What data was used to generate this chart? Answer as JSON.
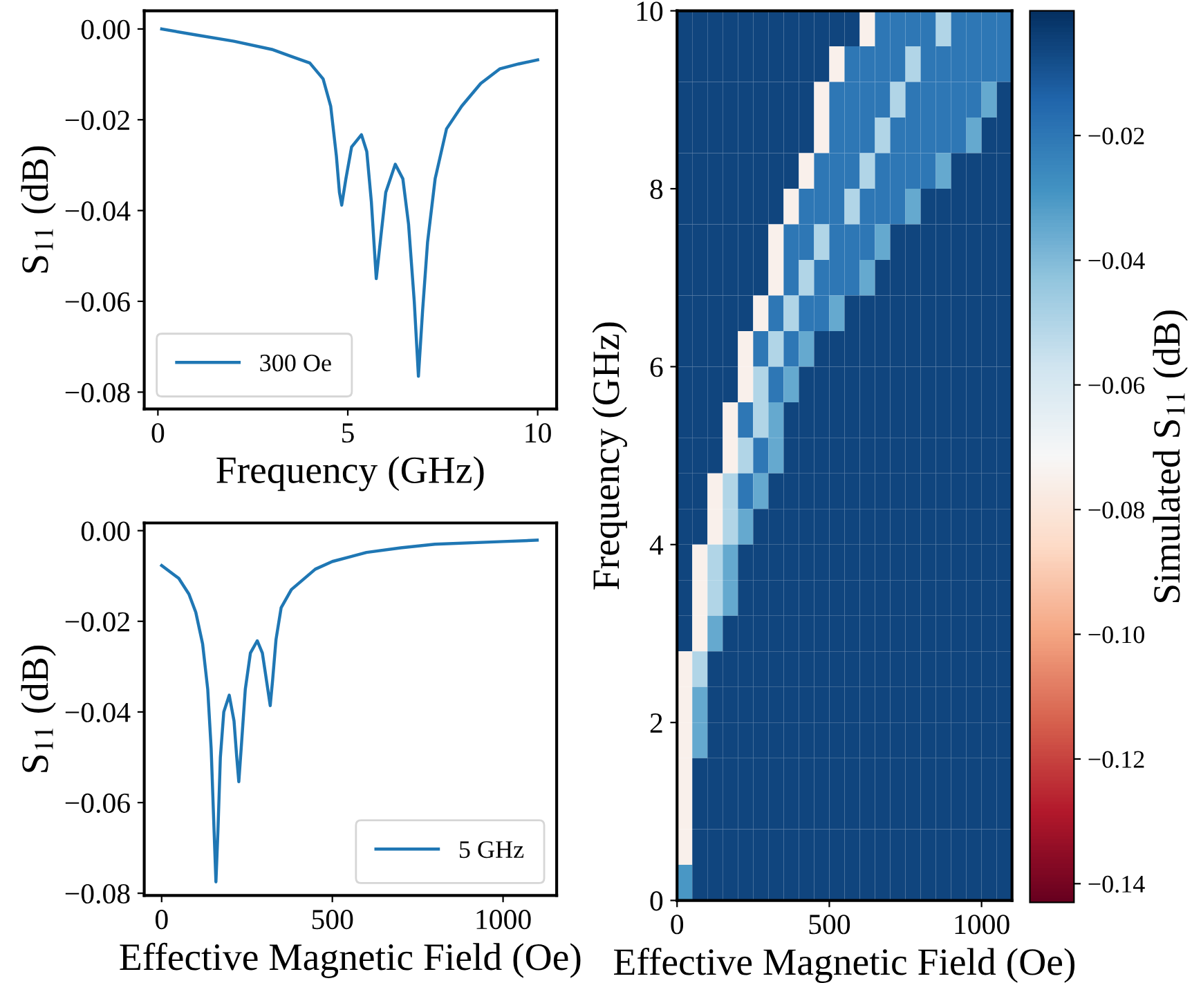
{
  "chart_data": [
    {
      "type": "line",
      "xlabel": "Frequency (GHz)",
      "ylabel": "S$_{11}$ (dB)",
      "xlim": [
        -0.36,
        10.5
      ],
      "ylim": [
        -0.0837,
        0.004
      ],
      "xticks": [
        0,
        5,
        10
      ],
      "yticks": [
        {
          "value": 0,
          "label": "0.00"
        },
        {
          "value": -0.02,
          "label": "−0.02"
        },
        {
          "value": -0.04,
          "label": "−0.04"
        },
        {
          "value": -0.06,
          "label": "−0.06"
        },
        {
          "value": -0.08,
          "label": "−0.08"
        }
      ],
      "grid": false,
      "legend": "bottom left",
      "series": [
        {
          "name": "300 Oe",
          "color": "#1f77b4",
          "x": [
            0.1,
            1,
            2,
            3,
            3.5,
            4.0,
            4.35,
            4.55,
            4.7,
            4.78,
            4.84,
            4.95,
            5.1,
            5.36,
            5.5,
            5.62,
            5.75,
            5.88,
            6.0,
            6.25,
            6.45,
            6.6,
            6.75,
            6.86,
            6.97,
            7.1,
            7.3,
            7.6,
            8,
            8.5,
            9,
            9.5,
            10
          ],
          "values": [
            0.0,
            -0.0013,
            -0.0027,
            -0.0045,
            -0.006,
            -0.0075,
            -0.011,
            -0.017,
            -0.028,
            -0.036,
            -0.0388,
            -0.033,
            -0.026,
            -0.0233,
            -0.027,
            -0.038,
            -0.055,
            -0.045,
            -0.036,
            -0.0298,
            -0.033,
            -0.043,
            -0.06,
            -0.0765,
            -0.062,
            -0.047,
            -0.033,
            -0.022,
            -0.017,
            -0.012,
            -0.0088,
            -0.0077,
            -0.0068
          ]
        }
      ]
    },
    {
      "type": "line",
      "xlabel": "Effective Magnetic Field (Oe)",
      "ylabel": "S$_{11}$ (dB)",
      "xlim": [
        -51,
        1157
      ],
      "ylim": [
        -0.0805,
        0.0017
      ],
      "xticks": [
        0,
        500,
        1000
      ],
      "yticks": [
        {
          "value": 0,
          "label": "0.00"
        },
        {
          "value": -0.02,
          "label": "−0.02"
        },
        {
          "value": -0.04,
          "label": "−0.04"
        },
        {
          "value": -0.06,
          "label": "−0.06"
        },
        {
          "value": -0.08,
          "label": "−0.08"
        }
      ],
      "grid": false,
      "legend": "bottom right",
      "series": [
        {
          "name": "5 GHz",
          "color": "#1f77b4",
          "x": [
            0,
            50,
            80,
            100,
            120,
            135,
            145,
            153,
            159,
            165,
            172,
            182,
            198,
            212,
            220,
            226,
            233,
            245,
            260,
            280,
            295,
            305,
            318,
            325,
            335,
            350,
            380,
            450,
            500,
            600,
            700,
            800,
            1000,
            1100
          ],
          "values": [
            -0.0077,
            -0.0105,
            -0.014,
            -0.018,
            -0.025,
            -0.035,
            -0.048,
            -0.065,
            -0.0775,
            -0.066,
            -0.05,
            -0.04,
            -0.0363,
            -0.042,
            -0.05,
            -0.0554,
            -0.048,
            -0.035,
            -0.027,
            -0.0243,
            -0.027,
            -0.032,
            -0.0386,
            -0.033,
            -0.024,
            -0.017,
            -0.013,
            -0.0085,
            -0.0068,
            -0.0048,
            -0.0038,
            -0.003,
            -0.0024,
            -0.0021
          ]
        }
      ]
    },
    {
      "type": "heatmap",
      "xlabel": "Effective Magnetic Field (Oe)",
      "ylabel": "Frequency (GHz)",
      "clabel": "Simulated S$_{11}$ (dB)",
      "xlim": [
        0,
        1100
      ],
      "ylim": [
        0,
        10
      ],
      "xticks": [
        0,
        500,
        1000
      ],
      "yticks": [
        0,
        2,
        4,
        6,
        8,
        10
      ],
      "clim": [
        -0.143,
        0
      ],
      "cticks": [
        {
          "value": -0.02,
          "label": "−0.02"
        },
        {
          "value": -0.04,
          "label": "−0.04"
        },
        {
          "value": -0.06,
          "label": "−0.06"
        },
        {
          "value": -0.08,
          "label": "−0.08"
        },
        {
          "value": -0.1,
          "label": "−0.10"
        },
        {
          "value": -0.12,
          "label": "−0.12"
        },
        {
          "value": -0.14,
          "label": "−0.14"
        }
      ],
      "cells": [
        [
          -0.006,
          -0.006,
          -0.006,
          -0.006,
          -0.006,
          -0.006,
          -0.006,
          -0.006,
          -0.006,
          -0.006,
          -0.006,
          -0.006,
          -0.075,
          -0.02,
          -0.02,
          -0.02,
          -0.02,
          -0.05,
          -0.02,
          -0.02,
          -0.02,
          -0.02
        ],
        [
          -0.006,
          -0.006,
          -0.006,
          -0.006,
          -0.006,
          -0.006,
          -0.006,
          -0.006,
          -0.006,
          -0.006,
          -0.075,
          -0.02,
          -0.02,
          -0.02,
          -0.02,
          -0.05,
          -0.02,
          -0.02,
          -0.02,
          -0.02,
          -0.02,
          -0.02
        ],
        [
          -0.006,
          -0.006,
          -0.006,
          -0.006,
          -0.006,
          -0.006,
          -0.006,
          -0.006,
          -0.006,
          -0.075,
          -0.02,
          -0.02,
          -0.02,
          -0.02,
          -0.05,
          -0.02,
          -0.02,
          -0.02,
          -0.02,
          -0.02,
          -0.035,
          -0.006
        ],
        [
          -0.006,
          -0.006,
          -0.006,
          -0.006,
          -0.006,
          -0.006,
          -0.006,
          -0.006,
          -0.006,
          -0.075,
          -0.02,
          -0.02,
          -0.02,
          -0.05,
          -0.02,
          -0.02,
          -0.02,
          -0.02,
          -0.02,
          -0.035,
          -0.006,
          -0.006
        ],
        [
          -0.006,
          -0.006,
          -0.006,
          -0.006,
          -0.006,
          -0.006,
          -0.006,
          -0.006,
          -0.075,
          -0.02,
          -0.02,
          -0.02,
          -0.05,
          -0.02,
          -0.02,
          -0.02,
          -0.02,
          -0.035,
          -0.006,
          -0.006,
          -0.006,
          -0.006
        ],
        [
          -0.006,
          -0.006,
          -0.006,
          -0.006,
          -0.006,
          -0.006,
          -0.006,
          -0.075,
          -0.02,
          -0.02,
          -0.02,
          -0.05,
          -0.02,
          -0.02,
          -0.02,
          -0.035,
          -0.006,
          -0.006,
          -0.006,
          -0.006,
          -0.006,
          -0.006
        ],
        [
          -0.006,
          -0.006,
          -0.006,
          -0.006,
          -0.006,
          -0.006,
          -0.075,
          -0.02,
          -0.02,
          -0.05,
          -0.02,
          -0.02,
          -0.02,
          -0.035,
          -0.006,
          -0.006,
          -0.006,
          -0.006,
          -0.006,
          -0.006,
          -0.006,
          -0.006
        ],
        [
          -0.006,
          -0.006,
          -0.006,
          -0.006,
          -0.006,
          -0.006,
          -0.075,
          -0.02,
          -0.05,
          -0.02,
          -0.02,
          -0.02,
          -0.035,
          -0.006,
          -0.006,
          -0.006,
          -0.006,
          -0.006,
          -0.006,
          -0.006,
          -0.006,
          -0.006
        ],
        [
          -0.006,
          -0.006,
          -0.006,
          -0.006,
          -0.006,
          -0.075,
          -0.02,
          -0.05,
          -0.02,
          -0.02,
          -0.035,
          -0.006,
          -0.006,
          -0.006,
          -0.006,
          -0.006,
          -0.006,
          -0.006,
          -0.006,
          -0.006,
          -0.006,
          -0.006
        ],
        [
          -0.006,
          -0.006,
          -0.006,
          -0.006,
          -0.075,
          -0.02,
          -0.05,
          -0.02,
          -0.035,
          -0.006,
          -0.006,
          -0.006,
          -0.006,
          -0.006,
          -0.006,
          -0.006,
          -0.006,
          -0.006,
          -0.006,
          -0.006,
          -0.006,
          -0.006
        ],
        [
          -0.006,
          -0.006,
          -0.006,
          -0.006,
          -0.075,
          -0.05,
          -0.02,
          -0.035,
          -0.006,
          -0.006,
          -0.006,
          -0.006,
          -0.006,
          -0.006,
          -0.006,
          -0.006,
          -0.006,
          -0.006,
          -0.006,
          -0.006,
          -0.006,
          -0.006
        ],
        [
          -0.006,
          -0.006,
          -0.006,
          -0.075,
          -0.02,
          -0.05,
          -0.035,
          -0.006,
          -0.006,
          -0.006,
          -0.006,
          -0.006,
          -0.006,
          -0.006,
          -0.006,
          -0.006,
          -0.006,
          -0.006,
          -0.006,
          -0.006,
          -0.006,
          -0.006
        ],
        [
          -0.006,
          -0.006,
          -0.006,
          -0.075,
          -0.05,
          -0.02,
          -0.035,
          -0.006,
          -0.006,
          -0.006,
          -0.006,
          -0.006,
          -0.006,
          -0.006,
          -0.006,
          -0.006,
          -0.006,
          -0.006,
          -0.006,
          -0.006,
          -0.006,
          -0.006
        ],
        [
          -0.006,
          -0.006,
          -0.075,
          -0.05,
          -0.02,
          -0.035,
          -0.006,
          -0.006,
          -0.006,
          -0.006,
          -0.006,
          -0.006,
          -0.006,
          -0.006,
          -0.006,
          -0.006,
          -0.006,
          -0.006,
          -0.006,
          -0.006,
          -0.006,
          -0.006
        ],
        [
          -0.006,
          -0.006,
          -0.075,
          -0.05,
          -0.035,
          -0.006,
          -0.006,
          -0.006,
          -0.006,
          -0.006,
          -0.006,
          -0.006,
          -0.006,
          -0.006,
          -0.006,
          -0.006,
          -0.006,
          -0.006,
          -0.006,
          -0.006,
          -0.006,
          -0.006
        ],
        [
          -0.006,
          -0.075,
          -0.05,
          -0.035,
          -0.006,
          -0.006,
          -0.006,
          -0.006,
          -0.006,
          -0.006,
          -0.006,
          -0.006,
          -0.006,
          -0.006,
          -0.006,
          -0.006,
          -0.006,
          -0.006,
          -0.006,
          -0.006,
          -0.006,
          -0.006
        ],
        [
          -0.006,
          -0.075,
          -0.05,
          -0.035,
          -0.006,
          -0.006,
          -0.006,
          -0.006,
          -0.006,
          -0.006,
          -0.006,
          -0.006,
          -0.006,
          -0.006,
          -0.006,
          -0.006,
          -0.006,
          -0.006,
          -0.006,
          -0.006,
          -0.006,
          -0.006
        ],
        [
          -0.006,
          -0.075,
          -0.035,
          -0.006,
          -0.006,
          -0.006,
          -0.006,
          -0.006,
          -0.006,
          -0.006,
          -0.006,
          -0.006,
          -0.006,
          -0.006,
          -0.006,
          -0.006,
          -0.006,
          -0.006,
          -0.006,
          -0.006,
          -0.006,
          -0.006
        ],
        [
          -0.075,
          -0.05,
          -0.006,
          -0.006,
          -0.006,
          -0.006,
          -0.006,
          -0.006,
          -0.006,
          -0.006,
          -0.006,
          -0.006,
          -0.006,
          -0.006,
          -0.006,
          -0.006,
          -0.006,
          -0.006,
          -0.006,
          -0.006,
          -0.006,
          -0.006
        ],
        [
          -0.075,
          -0.035,
          -0.006,
          -0.006,
          -0.006,
          -0.006,
          -0.006,
          -0.006,
          -0.006,
          -0.006,
          -0.006,
          -0.006,
          -0.006,
          -0.006,
          -0.006,
          -0.006,
          -0.006,
          -0.006,
          -0.006,
          -0.006,
          -0.006,
          -0.006
        ],
        [
          -0.075,
          -0.035,
          -0.006,
          -0.006,
          -0.006,
          -0.006,
          -0.006,
          -0.006,
          -0.006,
          -0.006,
          -0.006,
          -0.006,
          -0.006,
          -0.006,
          -0.006,
          -0.006,
          -0.006,
          -0.006,
          -0.006,
          -0.006,
          -0.006,
          -0.006
        ],
        [
          -0.075,
          -0.006,
          -0.006,
          -0.006,
          -0.006,
          -0.006,
          -0.006,
          -0.006,
          -0.006,
          -0.006,
          -0.006,
          -0.006,
          -0.006,
          -0.006,
          -0.006,
          -0.006,
          -0.006,
          -0.006,
          -0.006,
          -0.006,
          -0.006,
          -0.006
        ],
        [
          -0.075,
          -0.006,
          -0.006,
          -0.006,
          -0.006,
          -0.006,
          -0.006,
          -0.006,
          -0.006,
          -0.006,
          -0.006,
          -0.006,
          -0.006,
          -0.006,
          -0.006,
          -0.006,
          -0.006,
          -0.006,
          -0.006,
          -0.006,
          -0.006,
          -0.006
        ],
        [
          -0.075,
          -0.006,
          -0.006,
          -0.006,
          -0.006,
          -0.006,
          -0.006,
          -0.006,
          -0.006,
          -0.006,
          -0.006,
          -0.006,
          -0.006,
          -0.006,
          -0.006,
          -0.006,
          -0.006,
          -0.006,
          -0.006,
          -0.006,
          -0.006,
          -0.006
        ],
        [
          -0.03,
          -0.006,
          -0.006,
          -0.006,
          -0.006,
          -0.006,
          -0.006,
          -0.006,
          -0.006,
          -0.006,
          -0.006,
          -0.006,
          -0.006,
          -0.006,
          -0.006,
          -0.006,
          -0.006,
          -0.006,
          -0.006,
          -0.006,
          -0.006,
          -0.006
        ]
      ]
    }
  ]
}
